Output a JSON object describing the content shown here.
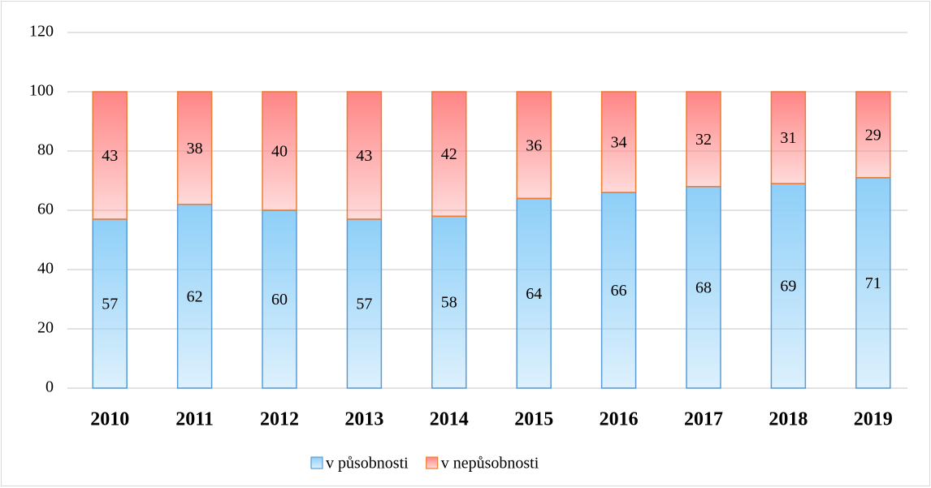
{
  "chart_data": {
    "type": "stacked_bar",
    "categories": [
      "2010",
      "2011",
      "2012",
      "2013",
      "2014",
      "2015",
      "2016",
      "2017",
      "2018",
      "2019"
    ],
    "series": [
      {
        "name": "v působnosti",
        "color": "#8ecff8",
        "edge": "#5b9bd5",
        "values": [
          57,
          62,
          60,
          57,
          58,
          64,
          66,
          68,
          69,
          71
        ]
      },
      {
        "name": "v nepůsobnosti",
        "color": "#ff8585",
        "edge": "#ed7d31",
        "values": [
          43,
          38,
          40,
          43,
          42,
          36,
          34,
          32,
          31,
          29
        ]
      }
    ],
    "ylim": [
      0,
      120
    ],
    "yticks": [
      0,
      20,
      40,
      60,
      80,
      100,
      120
    ],
    "grid": true,
    "legend": "bottom"
  }
}
